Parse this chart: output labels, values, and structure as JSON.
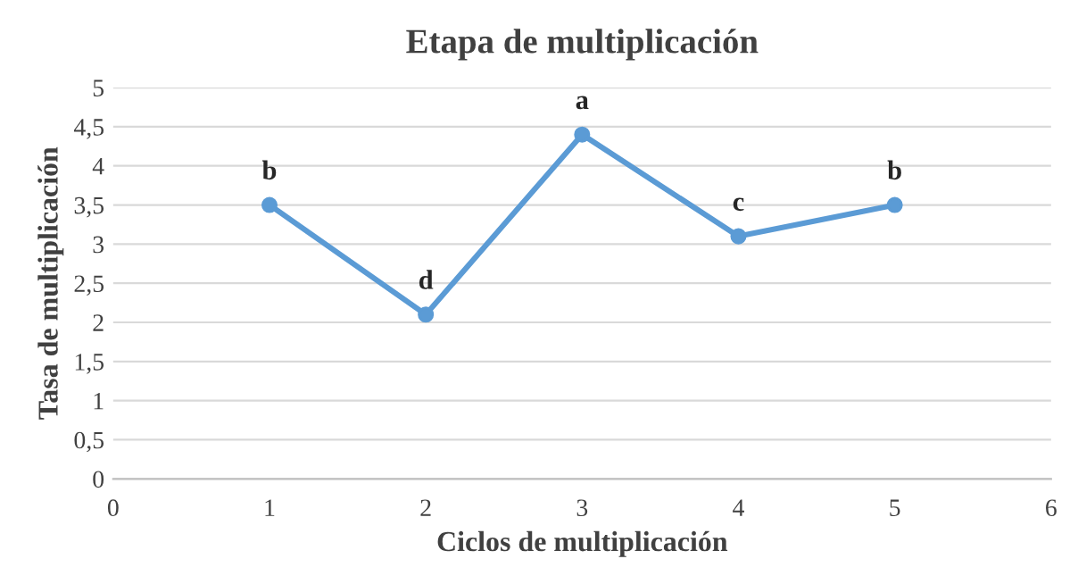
{
  "chart_data": {
    "type": "line",
    "title": "Etapa de multiplicación",
    "xlabel": "Ciclos de multiplicación",
    "ylabel": "Tasa de multiplicación",
    "x": [
      1,
      2,
      3,
      4,
      5
    ],
    "series": [
      {
        "color": "#5b9bd5",
        "values": [
          3.5,
          2.1,
          4.4,
          3.1,
          3.5
        ]
      }
    ],
    "xlim": [
      0,
      6
    ],
    "xticks": [
      0,
      1,
      2,
      3,
      4,
      5,
      6
    ],
    "ylim": [
      0,
      5
    ],
    "yticks": [
      0,
      {
        "value": 0.5,
        "label": "0,5"
      },
      1,
      {
        "value": 1.5,
        "label": "1,5"
      },
      2,
      {
        "value": 2.5,
        "label": "2,5"
      },
      3,
      {
        "value": 3.5,
        "label": "3,5"
      },
      4,
      {
        "value": 4.5,
        "label": "4,5"
      },
      5
    ],
    "grid": "y",
    "marker": "circle",
    "line_style": "solid",
    "annotations": [
      {
        "text": "b",
        "x": 1,
        "y": 3.5
      },
      {
        "text": "d",
        "x": 2,
        "y": 2.1
      },
      {
        "text": "a",
        "x": 3,
        "y": 4.4
      },
      {
        "text": "c",
        "x": 4,
        "y": 3.1
      },
      {
        "text": "b",
        "x": 5,
        "y": 3.5
      }
    ]
  }
}
